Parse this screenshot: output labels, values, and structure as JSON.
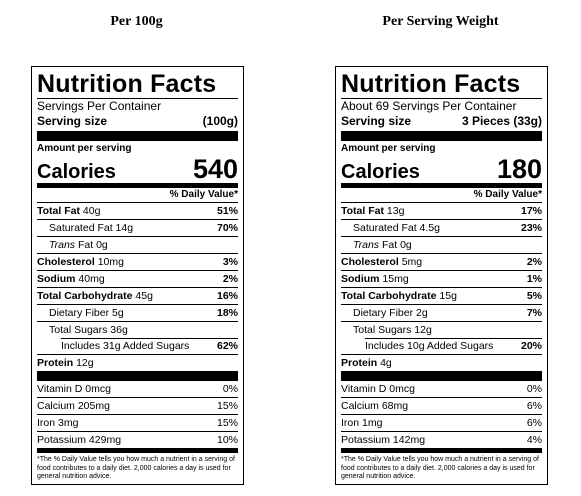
{
  "left": {
    "heading": "Per 100g",
    "title": "Nutrition Facts",
    "servings_per_container": "Servings Per Container",
    "serving_size_label": "Serving size",
    "serving_size_value": "(100g)",
    "amount_per_serving": "Amount per serving",
    "calories_label": "Calories",
    "calories_value": "540",
    "dv_header": "% Daily Value*",
    "total_fat_label": "Total Fat",
    "total_fat_amount": "40g",
    "total_fat_dv": "51%",
    "sat_fat_label": "Saturated Fat 14g",
    "sat_fat_dv": "70%",
    "trans_label": "Trans",
    "trans_rest": "Fat 0g",
    "chol_label": "Cholesterol",
    "chol_amount": "10mg",
    "chol_dv": "3%",
    "sodium_label": "Sodium",
    "sodium_amount": "40mg",
    "sodium_dv": "2%",
    "carb_label": "Total Carbohydrate",
    "carb_amount": "45g",
    "carb_dv": "16%",
    "fiber_label": "Dietary Fiber 5g",
    "fiber_dv": "18%",
    "sugars_label": "Total Sugars 36g",
    "added_label": "Includes 31g Added Sugars",
    "added_dv": "62%",
    "protein_label": "Protein",
    "protein_amount": "12g",
    "vitd_label": "Vitamin D 0mcg",
    "vitd_dv": "0%",
    "calcium_label": "Calcium 205mg",
    "calcium_dv": "15%",
    "iron_label": "Iron 3mg",
    "iron_dv": "15%",
    "potassium_label": "Potassium 429mg",
    "potassium_dv": "10%",
    "footnote": "*The % Daily Value tells you how much a nutrient in a serving of food contributes to a daily diet. 2,000 calories a day is used for general nutrition advice."
  },
  "right": {
    "heading": "Per Serving Weight",
    "title": "Nutrition Facts",
    "servings_per_container": "About 69 Servings Per Container",
    "serving_size_label": "Serving size",
    "serving_size_value": "3 Pieces (33g)",
    "amount_per_serving": "Amount per serving",
    "calories_label": "Calories",
    "calories_value": "180",
    "dv_header": "% Daily Value*",
    "total_fat_label": "Total Fat",
    "total_fat_amount": "13g",
    "total_fat_dv": "17%",
    "sat_fat_label": "Saturated Fat 4.5g",
    "sat_fat_dv": "23%",
    "trans_label": "Trans",
    "trans_rest": "Fat 0g",
    "chol_label": "Cholesterol",
    "chol_amount": "5mg",
    "chol_dv": "2%",
    "sodium_label": "Sodium",
    "sodium_amount": "15mg",
    "sodium_dv": "1%",
    "carb_label": "Total Carbohydrate",
    "carb_amount": "15g",
    "carb_dv": "5%",
    "fiber_label": "Dietary Fiber 2g",
    "fiber_dv": "7%",
    "sugars_label": "Total Sugars 12g",
    "added_label": "Includes 10g Added Sugars",
    "added_dv": "20%",
    "protein_label": "Protein",
    "protein_amount": "4g",
    "vitd_label": "Vitamin D 0mcg",
    "vitd_dv": "0%",
    "calcium_label": "Calcium 68mg",
    "calcium_dv": "6%",
    "iron_label": "Iron 1mg",
    "iron_dv": "6%",
    "potassium_label": "Potassium 142mg",
    "potassium_dv": "4%",
    "footnote": "*The % Daily Value tells you how much a nutrient in a serving of food contributes to a daily diet. 2,000 calories a day is used for general nutrition advice."
  }
}
